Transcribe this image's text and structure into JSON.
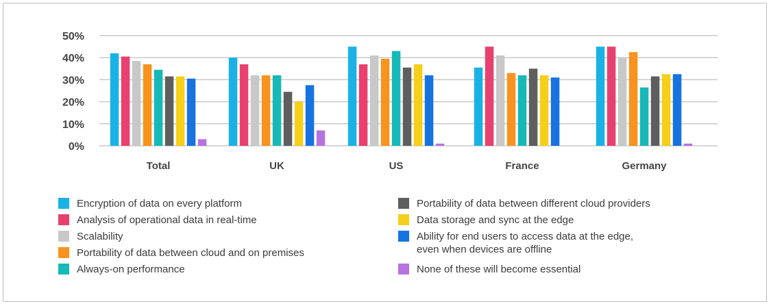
{
  "chart_data": {
    "type": "bar",
    "title": "",
    "xlabel": "",
    "ylabel": "",
    "ylim": [
      0,
      50
    ],
    "yticks": [
      "0%",
      "10%",
      "20%",
      "30%",
      "40%",
      "50%"
    ],
    "ytick_values": [
      0,
      10,
      20,
      30,
      40,
      50
    ],
    "grid": true,
    "legend_position": "bottom",
    "categories": [
      "Total",
      "UK",
      "US",
      "France",
      "Germany"
    ],
    "series": [
      {
        "name": "Encryption of data on every platform",
        "color": "#1ab2e6",
        "values": [
          42,
          40,
          45,
          35.5,
          45
        ]
      },
      {
        "name": "Analysis of operational data in real-time",
        "color": "#e8416f",
        "values": [
          40.5,
          37,
          37,
          45,
          45
        ]
      },
      {
        "name": "Scalability",
        "color": "#c8c8c8",
        "values": [
          38.5,
          32,
          41,
          41,
          40
        ]
      },
      {
        "name": "Portability of data between cloud and on premises",
        "color": "#f7931e",
        "values": [
          37,
          32,
          39.5,
          33,
          42.5
        ]
      },
      {
        "name": "Always-on performance",
        "color": "#17b8b8",
        "values": [
          34.5,
          32,
          43,
          32,
          26.5
        ]
      },
      {
        "name": "Portability of data between different cloud providers",
        "color": "#5e5e5e",
        "values": [
          31.5,
          24.5,
          35.5,
          35,
          31.5
        ]
      },
      {
        "name": "Data storage and sync at the edge",
        "color": "#f5cf1a",
        "values": [
          31.5,
          20,
          37,
          32,
          32.5
        ]
      },
      {
        "name": "Ability for end users to access data at the edge,\neven when devices are offline",
        "color": "#1673e0",
        "values": [
          30.5,
          27.5,
          32,
          31,
          32.5
        ]
      },
      {
        "name": "None of these will become essential",
        "color": "#b673e0",
        "values": [
          3,
          7,
          1,
          0,
          1
        ]
      }
    ]
  }
}
